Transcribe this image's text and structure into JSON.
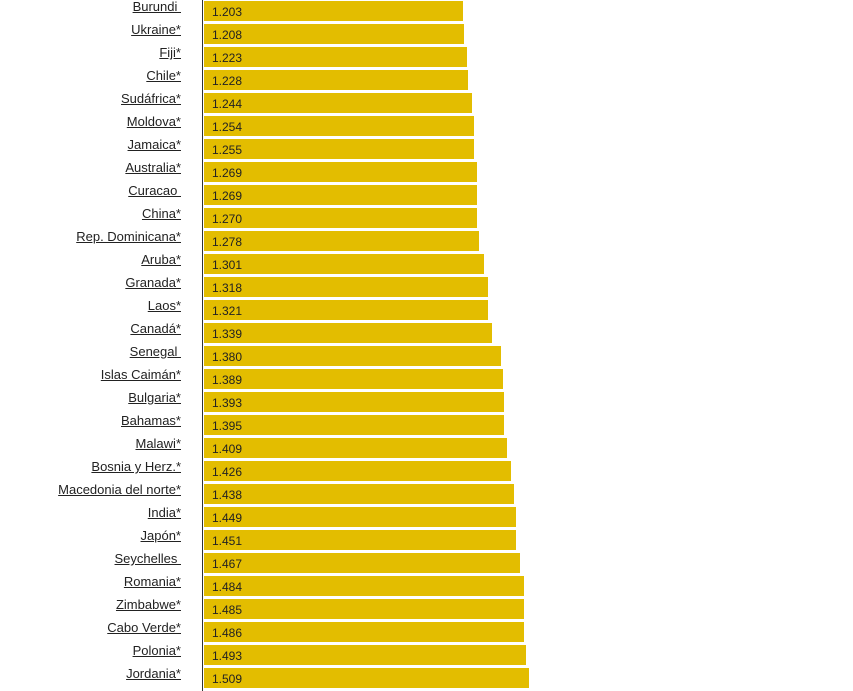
{
  "chart_data": {
    "type": "bar",
    "orientation": "horizontal",
    "bar_color": "#E3BD00",
    "categories": [
      "Burundi ",
      "Ukraine*",
      "Fiji*",
      "Chile*",
      "Sudáfrica*",
      "Moldova*",
      "Jamaica*",
      "Australia*",
      "Curacao ",
      "China*",
      "Rep. Dominicana*",
      "Aruba*",
      "Granada*",
      "Laos*",
      "Canadá*",
      "Senegal ",
      "Islas Caimán*",
      "Bulgaria*",
      "Bahamas*",
      "Malawi*",
      "Bosnia y Herz.*",
      "Macedonia del norte*",
      "India*",
      "Japón*",
      "Seychelles ",
      "Romania*",
      "Zimbabwe*",
      "Cabo Verde*",
      "Polonia*",
      "Jordania*"
    ],
    "values": [
      1.203,
      1.208,
      1.223,
      1.228,
      1.244,
      1.254,
      1.255,
      1.269,
      1.269,
      1.27,
      1.278,
      1.301,
      1.318,
      1.321,
      1.339,
      1.38,
      1.389,
      1.393,
      1.395,
      1.409,
      1.426,
      1.438,
      1.449,
      1.451,
      1.467,
      1.484,
      1.485,
      1.486,
      1.493,
      1.509
    ],
    "value_labels": [
      "1.203",
      "1.208",
      "1.223",
      "1.228",
      "1.244",
      "1.254",
      "1.255",
      "1.269",
      "1.269",
      "1.270",
      "1.278",
      "1.301",
      "1.318",
      "1.321",
      "1.339",
      "1.380",
      "1.389",
      "1.393",
      "1.395",
      "1.409",
      "1.426",
      "1.438",
      "1.449",
      "1.451",
      "1.467",
      "1.484",
      "1.485",
      "1.486",
      "1.493",
      "1.509"
    ],
    "xlim": [
      0,
      1.509
    ],
    "title": "",
    "xlabel": "",
    "ylabel": ""
  }
}
